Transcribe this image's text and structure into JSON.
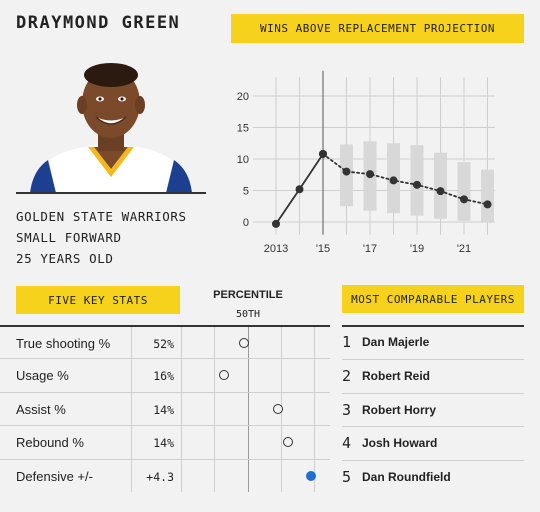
{
  "player": {
    "name": "DRAYMOND GREEN",
    "team": "GOLDEN STATE WARRIORS",
    "position": "SMALL FORWARD",
    "age": "25 YEARS OLD"
  },
  "projection": {
    "title": "WINS ABOVE REPLACEMENT PROJECTION"
  },
  "chart_data": {
    "type": "line",
    "title": "WINS ABOVE REPLACEMENT PROJECTION",
    "xlabel": "",
    "ylabel": "",
    "ylim": [
      -2,
      24
    ],
    "yticks": [
      0,
      5,
      10,
      15,
      20
    ],
    "xtick_labels": [
      "2013",
      "'15",
      "'17",
      "'19",
      "'21"
    ],
    "xtick_years": [
      2013,
      2015,
      2017,
      2019,
      2021
    ],
    "current_year": 2015,
    "series": [
      {
        "values_x": [
          2013,
          2014,
          2015
        ],
        "values_y": [
          -0.3,
          5.2,
          10.8
        ],
        "style": "solid",
        "color": "#333333"
      },
      {
        "values_x": [
          2015,
          2016,
          2017,
          2018,
          2019,
          2020,
          2021,
          2022
        ],
        "values_y": [
          10.8,
          8.0,
          7.6,
          6.6,
          5.9,
          4.9,
          3.6,
          2.8
        ],
        "style": "dotted",
        "color": "#333333"
      }
    ],
    "ranges": [
      {
        "x": 2016,
        "low": 2.5,
        "high": 12.3
      },
      {
        "x": 2017,
        "low": 1.8,
        "high": 12.8
      },
      {
        "x": 2018,
        "low": 1.4,
        "high": 12.5
      },
      {
        "x": 2019,
        "low": 1.0,
        "high": 12.2
      },
      {
        "x": 2020,
        "low": 0.5,
        "high": 11.0
      },
      {
        "x": 2021,
        "low": 0.2,
        "high": 9.5
      },
      {
        "x": 2022,
        "low": 0.0,
        "high": 8.3
      }
    ]
  },
  "key_stats": {
    "title": "FIVE KEY STATS",
    "percentile_header": "PERCENTILE",
    "percentile_mid": "50TH",
    "rows": [
      {
        "label": "True shooting %",
        "value": "52%",
        "percentile": 30,
        "highlight": false
      },
      {
        "label": "Usage %",
        "value": "16%",
        "percentile": 10,
        "highlight": false
      },
      {
        "label": "Assist %",
        "value": "14%",
        "percentile": 64,
        "highlight": false
      },
      {
        "label": "Rebound %",
        "value": "14%",
        "percentile": 74,
        "highlight": false
      },
      {
        "label": "Defensive +/-",
        "value": "+4.3",
        "percentile": 97,
        "highlight": true
      }
    ]
  },
  "comparables": {
    "title": "MOST COMPARABLE PLAYERS",
    "players": [
      {
        "rank": "1",
        "name": "Dan Majerle"
      },
      {
        "rank": "2",
        "name": "Robert Reid"
      },
      {
        "rank": "3",
        "name": "Robert Horry"
      },
      {
        "rank": "4",
        "name": "Josh Howard"
      },
      {
        "rank": "5",
        "name": "Dan Roundfield"
      }
    ]
  },
  "colors": {
    "accent": "#f6d21c",
    "highlight_dot": "#1f6fd1",
    "range_bar": "#d8d8d8"
  }
}
